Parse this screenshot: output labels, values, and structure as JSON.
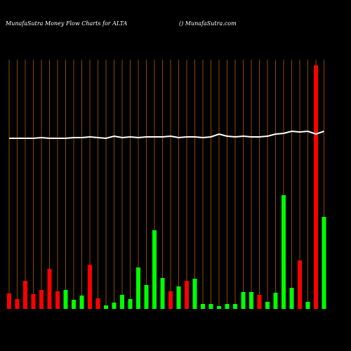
{
  "chart_data": {
    "type": "bar",
    "title": "MunafaSutra  Money Flow  Charts for ALTA",
    "subtitle": "() MunafaSutra.com",
    "categories": [
      null,
      null,
      null,
      null,
      null,
      null,
      null,
      null,
      null,
      null,
      null,
      null,
      null,
      null,
      null,
      null,
      null,
      null,
      null,
      null,
      null,
      null,
      null,
      null,
      null,
      null,
      null,
      null,
      null,
      null,
      null,
      null,
      null,
      null,
      null,
      null,
      null,
      null,
      null,
      null
    ],
    "series": [
      {
        "values": [
          22,
          14,
          40,
          21,
          27,
          57,
          25,
          27,
          13,
          19,
          63,
          15,
          5,
          9,
          20,
          14,
          59,
          34,
          112,
          44,
          25,
          32,
          40,
          43,
          7,
          7,
          4,
          7,
          7,
          24,
          24,
          20,
          10,
          23,
          162,
          30,
          69,
          10,
          347,
          131
        ],
        "colors": [
          "#ff0000",
          "#ff0000",
          "#ff0000",
          "#ff0000",
          "#ff0000",
          "#ff0000",
          "#ff0000",
          "#00ff00",
          "#00ff00",
          "#00ff00",
          "#ff0000",
          "#ff0000",
          "#00ff00",
          "#00ff00",
          "#00ff00",
          "#00ff00",
          "#00ff00",
          "#00ff00",
          "#00ff00",
          "#00ff00",
          "#ff0000",
          "#00ff00",
          "#ff0000",
          "#00ff00",
          "#00ff00",
          "#00ff00",
          "#00ff00",
          "#00ff00",
          "#00ff00",
          "#00ff00",
          "#00ff00",
          "#ff0000",
          "#00ff00",
          "#00ff00",
          "#00ff00",
          "#00ff00",
          "#ff0000",
          "#00ff00",
          "#ff0000",
          "#00ff00"
        ]
      },
      {
        "type": "line",
        "color": "#ffffff",
        "values": [
          243,
          243,
          243,
          243,
          244,
          243,
          243,
          243,
          244,
          244,
          245,
          244,
          243,
          246,
          244,
          245,
          244,
          245,
          245,
          245,
          246,
          244,
          245,
          245,
          244,
          245,
          249,
          246,
          245,
          246,
          245,
          245,
          246,
          249,
          250,
          253,
          252,
          253,
          249,
          253
        ]
      }
    ]
  }
}
